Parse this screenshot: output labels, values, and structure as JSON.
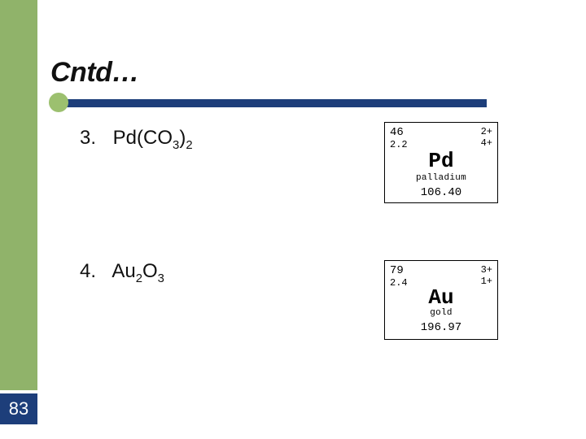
{
  "colors": {
    "sidebar_green": "#90b36a",
    "page_num_bg": "#1d3e7a",
    "rule_bar": "#1d3e7a",
    "rule_dot": "#9cc06f",
    "page_bg": "#ffffff",
    "text": "#111111",
    "card_border": "#000000"
  },
  "page_number": "83",
  "title": "Cntd…",
  "items": {
    "three": {
      "number": "3.",
      "formula_pre": "Pd(CO",
      "formula_sub1": "3",
      "formula_mid": ")",
      "formula_sub2": "2"
    },
    "four": {
      "number": "4.",
      "formula_pre": "Au",
      "formula_sub1": "2",
      "formula_mid": "O",
      "formula_sub2": "3"
    }
  },
  "element_cards": {
    "pd": {
      "atomic_number": "46",
      "electronegativity": "2.2",
      "oxidation1": "2+",
      "oxidation2": "4+",
      "symbol": "Pd",
      "name": "palladium",
      "mass": "106.40"
    },
    "au": {
      "atomic_number": "79",
      "electronegativity": "2.4",
      "oxidation1": "3+",
      "oxidation2": "1+",
      "symbol": "Au",
      "name": "gold",
      "mass": "196.97"
    }
  }
}
